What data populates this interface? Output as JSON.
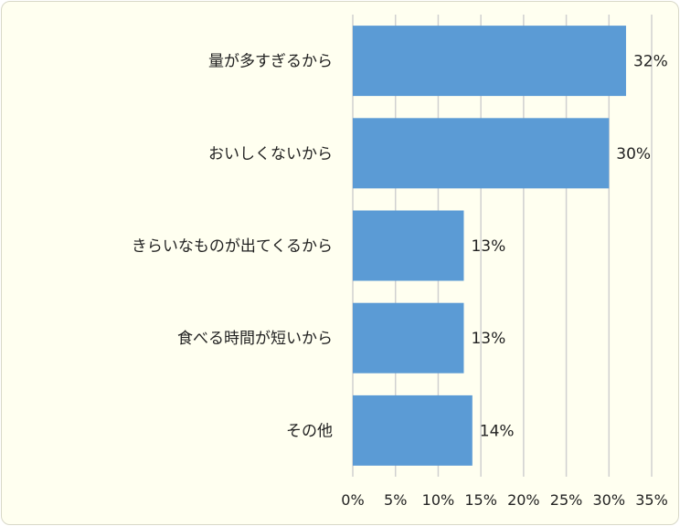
{
  "chart_data": {
    "type": "bar",
    "orientation": "horizontal",
    "categories": [
      "量が多すぎるから",
      "おいしくないから",
      "きらいなものが出てくるから",
      "食べる時間が短いから",
      "その他"
    ],
    "values": [
      32,
      30,
      13,
      13,
      14
    ],
    "value_labels": [
      "32%",
      "30%",
      "13%",
      "13%",
      "14%"
    ],
    "xlim": [
      0,
      35
    ],
    "x_ticks": [
      0,
      5,
      10,
      15,
      20,
      25,
      30,
      35
    ],
    "x_tick_labels": [
      "0%",
      "5%",
      "10%",
      "15%",
      "20%",
      "25%",
      "30%",
      "35%"
    ],
    "grid": "vertical",
    "bar_color": "#5b9bd5",
    "grid_color": "#d0d0d0",
    "background_color": "#fffff0"
  }
}
